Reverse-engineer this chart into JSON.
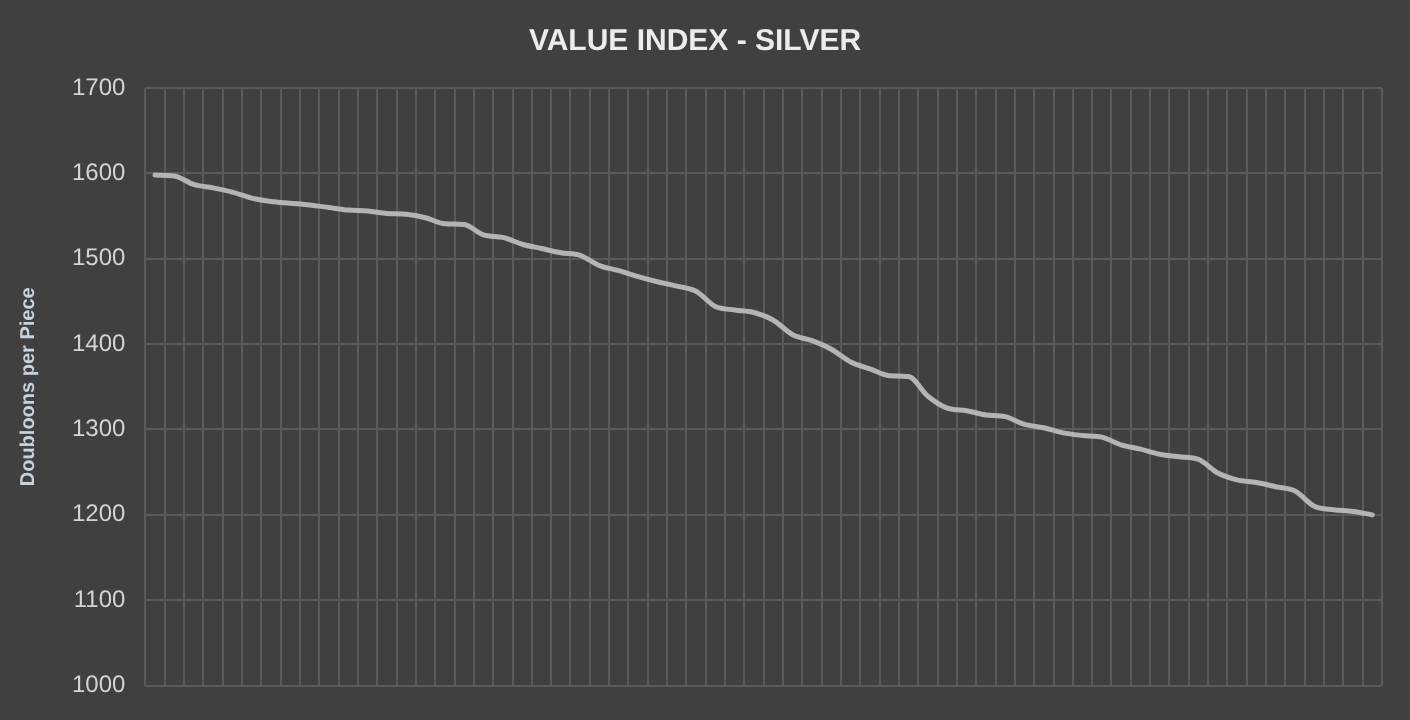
{
  "chart_data": {
    "type": "line",
    "title": "VALUE INDEX - SILVER",
    "ylabel": "Doubloons per Piece",
    "categories": [
      null,
      null,
      null,
      null,
      null,
      null,
      null,
      null,
      null,
      null,
      null,
      null,
      null,
      null,
      null,
      null,
      null,
      null,
      null,
      null,
      null,
      null,
      null,
      null,
      null,
      null,
      null,
      null,
      null,
      null,
      null,
      null,
      null,
      null,
      null,
      null,
      null,
      null,
      null,
      null,
      null,
      null,
      null,
      null,
      null,
      null,
      null,
      null,
      null,
      null,
      null,
      null,
      null,
      null,
      null,
      null,
      null,
      null,
      null,
      null,
      null,
      null,
      null,
      null
    ],
    "series": [
      {
        "color": "#b4b4b4",
        "values": [
          1598,
          1597,
          1587,
          1583,
          1578,
          1571,
          1567,
          1565,
          1563,
          1560,
          1557,
          1556,
          1553,
          1552,
          1548,
          1541,
          1540,
          1528,
          1525,
          1517,
          1512,
          1507,
          1504,
          1492,
          1486,
          1479,
          1473,
          1468,
          1462,
          1444,
          1440,
          1437,
          1428,
          1411,
          1404,
          1394,
          1379,
          1371,
          1363,
          1362,
          1339,
          1325,
          1322,
          1317,
          1315,
          1306,
          1302,
          1296,
          1293,
          1291,
          1282,
          1277,
          1271,
          1268,
          1265,
          1249,
          1241,
          1238,
          1233,
          1228,
          1210,
          1206,
          1204,
          1200
        ]
      }
    ],
    "ylim": [
      1000,
      1700
    ],
    "yticks": [
      1000,
      1100,
      1200,
      1300,
      1400,
      1500,
      1600,
      1700
    ],
    "grid": true,
    "legend": false,
    "tick_labels": "y",
    "marker": "none",
    "line_style": "solid"
  }
}
